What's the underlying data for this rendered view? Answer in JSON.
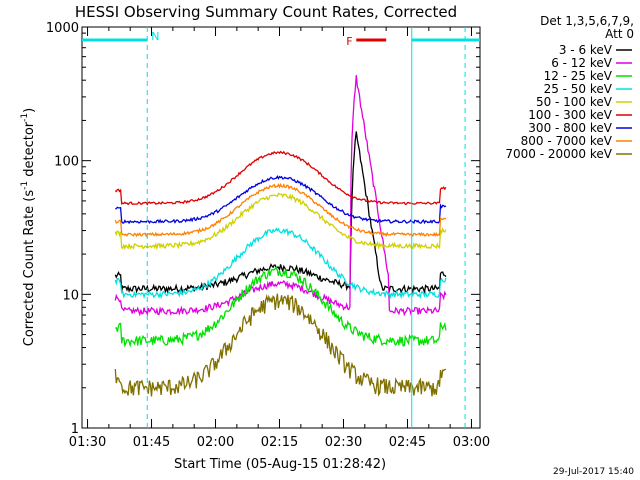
{
  "chart_data": {
    "type": "line",
    "title": "HESSI Observing Summary Count Rates, Corrected",
    "xlabel": "Start Time (05-Aug-15 01:28:42)",
    "ylabel_main": "Corrected Count Rate (s",
    "ylabel_sup1": "-1",
    "ylabel_mid": " detector",
    "ylabel_sup2": "-1",
    "ylabel_end": ")",
    "yscale": "log",
    "ylim": [
      1,
      1000
    ],
    "xlim_minutes": [
      88.7,
      182
    ],
    "x_tick_labels": [
      "01:30",
      "01:45",
      "02:00",
      "02:15",
      "02:30",
      "02:45",
      "03:00"
    ],
    "x_tick_minutes": [
      90,
      105,
      120,
      135,
      150,
      165,
      180
    ],
    "y_tick_labels": [
      "1",
      "10",
      "100",
      "1000"
    ],
    "y_tick_values": [
      1,
      10,
      100,
      1000
    ],
    "legend_header": [
      "Det 1,3,5,6,7,9,",
      "Att 0"
    ],
    "legend_placement": "top-right, outside plot",
    "footer_date": "29-Jul-2017 15:40",
    "annotations": [
      {
        "label": "N",
        "start_min": 88.7,
        "end_min": 104.0,
        "color": "#00e0e0",
        "level": 800
      },
      {
        "label": "",
        "start_min": 166.0,
        "end_min": 182,
        "color": "#00e0e0",
        "level": 800
      },
      {
        "label": "F",
        "start_min": 153.0,
        "end_min": 160.0,
        "color": "#e00000",
        "level": 800
      }
    ],
    "vertical_markers": [
      {
        "minute": 104.0,
        "style": "dashed",
        "color": "#00e0e0"
      },
      {
        "minute": 166.0,
        "style": "solid",
        "color": "#00e0e0"
      },
      {
        "minute": 178.5,
        "style": "dashed",
        "color": "#00e0e0"
      }
    ],
    "series": [
      {
        "name": "3 - 6 keV",
        "color": "#000000",
        "base": 11,
        "peak": 16,
        "flare": 160,
        "noise": 0.06
      },
      {
        "name": "6 - 12 keV",
        "color": "#e000e0",
        "base": 7.5,
        "peak": 12,
        "flare": 420,
        "noise": 0.06
      },
      {
        "name": "12 - 25 keV",
        "color": "#00e000",
        "base": 4.5,
        "peak": 15,
        "flare": 0,
        "noise": 0.09
      },
      {
        "name": "25 - 50 keV",
        "color": "#00e0e0",
        "base": 10,
        "peak": 30,
        "flare": 0,
        "noise": 0.05
      },
      {
        "name": "50 - 100 keV",
        "color": "#d0d000",
        "base": 23,
        "peak": 55,
        "flare": 0,
        "noise": 0.04
      },
      {
        "name": "100 - 300 keV",
        "color": "#e00000",
        "base": 48,
        "peak": 115,
        "flare": 0,
        "noise": 0.02
      },
      {
        "name": "300 - 800 keV",
        "color": "#0000e0",
        "base": 35,
        "peak": 75,
        "flare": 0,
        "noise": 0.025
      },
      {
        "name": "800 - 7000 keV",
        "color": "#ff8000",
        "base": 28,
        "peak": 65,
        "flare": 0,
        "noise": 0.025
      },
      {
        "name": "7000 - 20000 keV",
        "color": "#807000",
        "base": 2,
        "peak": 9,
        "flare": 0,
        "noise": 0.15
      }
    ]
  }
}
